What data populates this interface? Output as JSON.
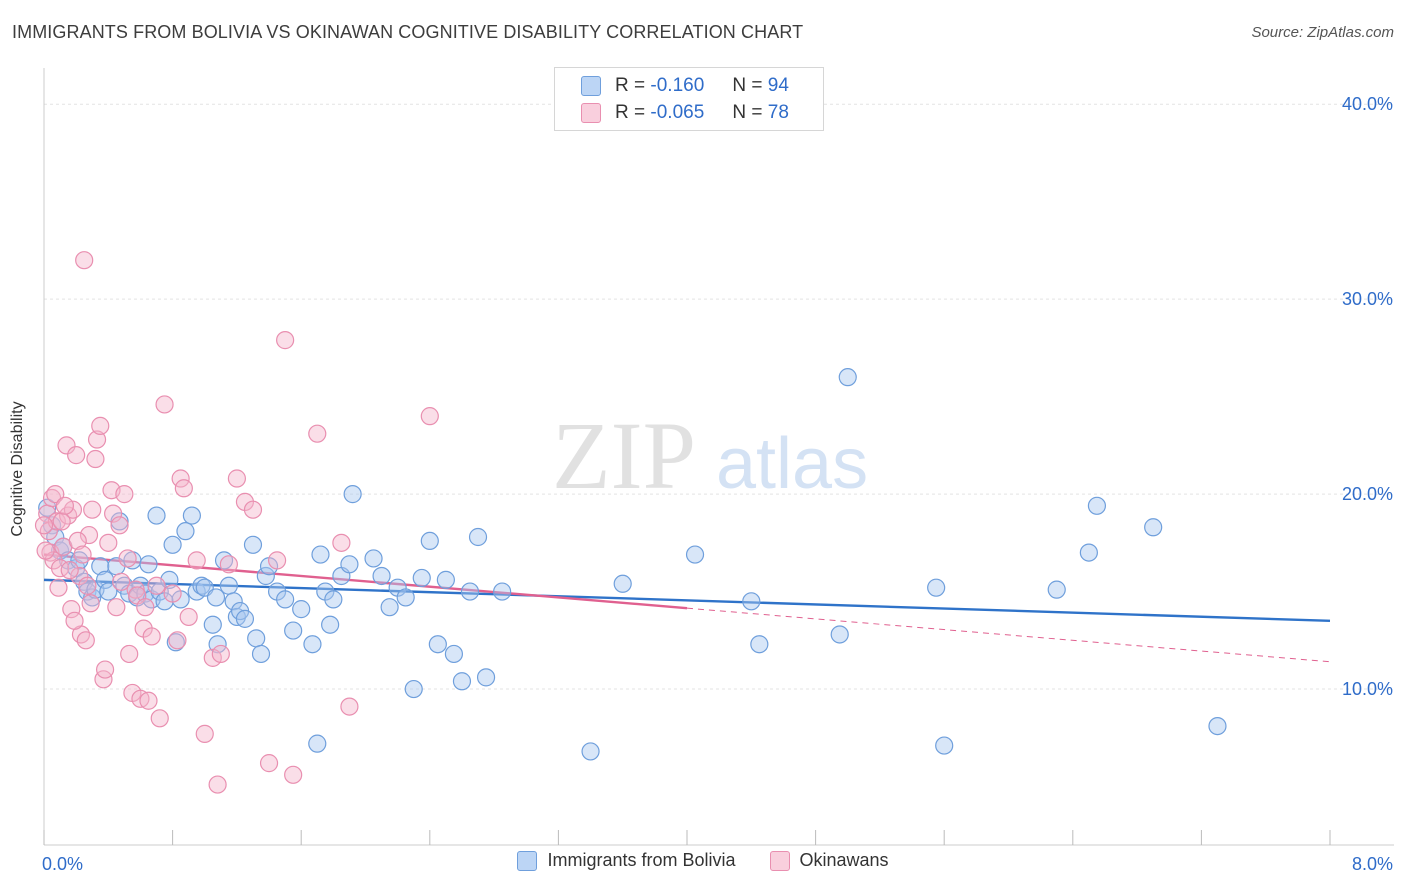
{
  "title": "IMMIGRANTS FROM BOLIVIA VS OKINAWAN COGNITIVE DISABILITY CORRELATION CHART",
  "source": "Source: ZipAtlas.com",
  "watermark": {
    "zip": "ZIP",
    "atlas": "atlas"
  },
  "stats_box": {
    "rows": [
      {
        "r_label": "R =",
        "r_value": "-0.160",
        "n_label": "N =",
        "n_value": "94",
        "color": "#a9c8f0"
      },
      {
        "r_label": "R =",
        "r_value": "-0.065",
        "n_label": "N =",
        "n_value": "78",
        "color": "#f5b6cc"
      }
    ]
  },
  "legend": {
    "items": [
      {
        "label": "Immigrants from Bolivia",
        "color": "#a9c8f0",
        "border": "#6f9fdc"
      },
      {
        "label": "Okinawans",
        "color": "#f5c6d6",
        "border": "#e98fb0"
      }
    ]
  },
  "chart_data": {
    "type": "scatter",
    "xlabel": "",
    "ylabel": "Cognitive Disability",
    "xlim": [
      0,
      8
    ],
    "ylim": [
      2.0,
      41.5
    ],
    "x_tick_labels": [
      "0.0%",
      "8.0%"
    ],
    "y_ticks": [
      10,
      20,
      30,
      40
    ],
    "y_tick_labels": [
      "10.0%",
      "20.0%",
      "30.0%",
      "40.0%"
    ],
    "grid": true,
    "legend_position": "bottom",
    "series": [
      {
        "name": "Immigrants from Bolivia",
        "color": "#6f9fdc",
        "fill": "rgba(169,200,240,0.45)",
        "trend": {
          "x": [
            0.0,
            8.0
          ],
          "y": [
            15.6,
            13.5
          ],
          "solid_to": 8.0,
          "color": "#2f73c9"
        },
        "points": [
          [
            0.05,
            18.4
          ],
          [
            0.07,
            17.8
          ],
          [
            0.1,
            17.1
          ],
          [
            0.12,
            17.3
          ],
          [
            0.15,
            16.6
          ],
          [
            0.2,
            16.2
          ],
          [
            0.22,
            16.6
          ],
          [
            0.25,
            15.5
          ],
          [
            0.27,
            15.0
          ],
          [
            0.3,
            14.7
          ],
          [
            0.32,
            15.1
          ],
          [
            0.35,
            16.3
          ],
          [
            0.38,
            15.6
          ],
          [
            0.4,
            15.0
          ],
          [
            0.45,
            16.3
          ],
          [
            0.47,
            18.6
          ],
          [
            0.5,
            15.3
          ],
          [
            0.53,
            14.9
          ],
          [
            0.55,
            16.6
          ],
          [
            0.58,
            14.7
          ],
          [
            0.6,
            15.3
          ],
          [
            0.63,
            14.9
          ],
          [
            0.65,
            16.4
          ],
          [
            0.67,
            14.6
          ],
          [
            0.7,
            18.9
          ],
          [
            0.72,
            15.0
          ],
          [
            0.75,
            14.5
          ],
          [
            0.78,
            15.6
          ],
          [
            0.8,
            17.4
          ],
          [
            0.82,
            12.4
          ],
          [
            0.85,
            14.6
          ],
          [
            0.88,
            18.1
          ],
          [
            0.92,
            18.9
          ],
          [
            0.95,
            15.0
          ],
          [
            0.98,
            15.3
          ],
          [
            1.0,
            15.2
          ],
          [
            1.05,
            13.3
          ],
          [
            1.07,
            14.7
          ],
          [
            1.08,
            12.3
          ],
          [
            1.12,
            16.6
          ],
          [
            1.15,
            15.3
          ],
          [
            1.18,
            14.5
          ],
          [
            1.2,
            13.7
          ],
          [
            1.22,
            14.0
          ],
          [
            1.25,
            13.6
          ],
          [
            1.3,
            17.4
          ],
          [
            1.32,
            12.6
          ],
          [
            1.35,
            11.8
          ],
          [
            1.38,
            15.8
          ],
          [
            1.4,
            16.3
          ],
          [
            1.45,
            15.0
          ],
          [
            1.5,
            14.6
          ],
          [
            1.55,
            13.0
          ],
          [
            1.6,
            14.1
          ],
          [
            1.67,
            12.3
          ],
          [
            1.7,
            7.2
          ],
          [
            1.72,
            16.9
          ],
          [
            1.75,
            15.0
          ],
          [
            1.78,
            13.3
          ],
          [
            1.8,
            14.6
          ],
          [
            1.85,
            15.8
          ],
          [
            1.9,
            16.4
          ],
          [
            1.92,
            20.0
          ],
          [
            2.05,
            16.7
          ],
          [
            2.1,
            15.8
          ],
          [
            2.15,
            14.2
          ],
          [
            2.2,
            15.2
          ],
          [
            2.25,
            14.7
          ],
          [
            2.3,
            10.0
          ],
          [
            2.35,
            15.7
          ],
          [
            2.4,
            17.6
          ],
          [
            2.45,
            12.3
          ],
          [
            2.5,
            15.6
          ],
          [
            2.55,
            11.8
          ],
          [
            2.6,
            10.4
          ],
          [
            2.65,
            15.0
          ],
          [
            2.7,
            17.8
          ],
          [
            2.75,
            10.6
          ],
          [
            2.85,
            15.0
          ],
          [
            3.4,
            6.8
          ],
          [
            3.6,
            15.4
          ],
          [
            4.05,
            16.9
          ],
          [
            4.4,
            14.5
          ],
          [
            4.45,
            12.3
          ],
          [
            4.95,
            12.8
          ],
          [
            5.0,
            26.0
          ],
          [
            5.55,
            15.2
          ],
          [
            5.6,
            7.1
          ],
          [
            6.3,
            15.1
          ],
          [
            6.5,
            17.0
          ],
          [
            6.55,
            19.4
          ],
          [
            6.9,
            18.3
          ],
          [
            7.3,
            8.1
          ],
          [
            0.02,
            19.3
          ]
        ]
      },
      {
        "name": "Okinawans",
        "color": "#e98fb0",
        "fill": "rgba(245,182,204,0.45)",
        "trend": {
          "x": [
            0.0,
            8.0
          ],
          "y": [
            16.9,
            11.4
          ],
          "solid_to": 4.0,
          "color": "#e0608f"
        },
        "points": [
          [
            0.02,
            19.0
          ],
          [
            0.03,
            18.1
          ],
          [
            0.04,
            17.0
          ],
          [
            0.05,
            19.8
          ],
          [
            0.06,
            16.6
          ],
          [
            0.08,
            18.6
          ],
          [
            0.1,
            16.2
          ],
          [
            0.12,
            17.3
          ],
          [
            0.14,
            22.5
          ],
          [
            0.15,
            18.9
          ],
          [
            0.17,
            14.1
          ],
          [
            0.18,
            19.2
          ],
          [
            0.2,
            22.0
          ],
          [
            0.22,
            15.8
          ],
          [
            0.23,
            12.8
          ],
          [
            0.25,
            32.0
          ],
          [
            0.26,
            12.5
          ],
          [
            0.28,
            17.9
          ],
          [
            0.3,
            19.2
          ],
          [
            0.32,
            21.8
          ],
          [
            0.33,
            22.8
          ],
          [
            0.35,
            23.5
          ],
          [
            0.37,
            10.5
          ],
          [
            0.38,
            11.0
          ],
          [
            0.4,
            17.5
          ],
          [
            0.42,
            20.2
          ],
          [
            0.43,
            19.0
          ],
          [
            0.45,
            14.2
          ],
          [
            0.47,
            18.4
          ],
          [
            0.48,
            15.5
          ],
          [
            0.5,
            20.0
          ],
          [
            0.52,
            16.7
          ],
          [
            0.53,
            11.8
          ],
          [
            0.55,
            9.8
          ],
          [
            0.57,
            15.1
          ],
          [
            0.58,
            14.8
          ],
          [
            0.6,
            9.5
          ],
          [
            0.62,
            13.1
          ],
          [
            0.63,
            14.2
          ],
          [
            0.65,
            9.4
          ],
          [
            0.67,
            12.7
          ],
          [
            0.7,
            15.3
          ],
          [
            0.72,
            8.5
          ],
          [
            0.75,
            24.6
          ],
          [
            0.8,
            14.9
          ],
          [
            0.83,
            12.5
          ],
          [
            0.85,
            20.8
          ],
          [
            0.87,
            20.3
          ],
          [
            0.9,
            13.7
          ],
          [
            0.95,
            16.6
          ],
          [
            1.0,
            7.7
          ],
          [
            1.05,
            11.6
          ],
          [
            1.08,
            5.1
          ],
          [
            1.1,
            11.8
          ],
          [
            1.15,
            16.4
          ],
          [
            1.2,
            20.8
          ],
          [
            1.25,
            19.6
          ],
          [
            1.3,
            19.2
          ],
          [
            1.4,
            6.2
          ],
          [
            1.45,
            16.6
          ],
          [
            1.5,
            27.9
          ],
          [
            1.55,
            5.6
          ],
          [
            1.7,
            23.1
          ],
          [
            1.85,
            17.5
          ],
          [
            1.9,
            9.1
          ],
          [
            2.4,
            24.0
          ],
          [
            0.0,
            18.4
          ],
          [
            0.01,
            17.1
          ],
          [
            0.07,
            20.0
          ],
          [
            0.09,
            15.2
          ],
          [
            0.11,
            18.6
          ],
          [
            0.13,
            19.4
          ],
          [
            0.16,
            16.1
          ],
          [
            0.19,
            13.5
          ],
          [
            0.21,
            17.6
          ],
          [
            0.24,
            16.9
          ],
          [
            0.27,
            15.3
          ],
          [
            0.29,
            14.4
          ]
        ]
      }
    ]
  }
}
